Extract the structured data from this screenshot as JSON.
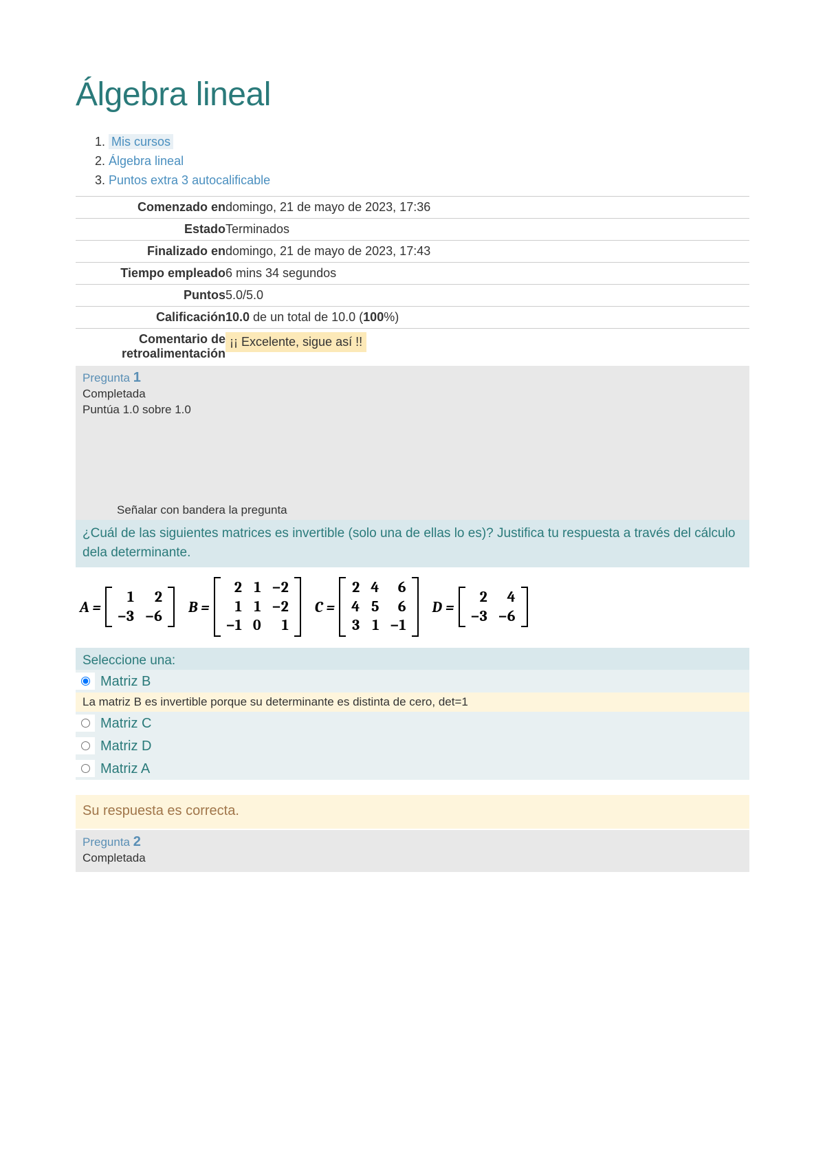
{
  "page": {
    "title": "Álgebra lineal"
  },
  "breadcrumbs": {
    "items": [
      {
        "label": "Mis cursos",
        "highlighted": true
      },
      {
        "label": "Álgebra lineal",
        "highlighted": false
      },
      {
        "label": "Puntos extra 3 autocalificable",
        "highlighted": false
      }
    ]
  },
  "summary": {
    "rows": {
      "started": {
        "label": "Comenzado en",
        "value": "domingo, 21 de mayo de 2023, 17:36"
      },
      "state": {
        "label": "Estado",
        "value": "Terminados"
      },
      "finished": {
        "label": "Finalizado en",
        "value": "domingo, 21 de mayo de 2023, 17:43"
      },
      "time": {
        "label": "Tiempo empleado",
        "value": "6 mins 34 segundos"
      },
      "points": {
        "label": "Puntos",
        "value": "5.0/5.0"
      },
      "grade": {
        "label": "Calificación",
        "value_prefix": "10.0",
        "value_mid": " de un total de 10.0 (",
        "value_bold": "100",
        "value_suffix": "%)"
      },
      "feedback": {
        "label": "Comentario de retroalimentación",
        "value": "¡¡ Excelente, sigue así !!"
      }
    }
  },
  "question1": {
    "label_prefix": "Pregunta ",
    "number": "1",
    "status": "Completada",
    "score": "Puntúa 1.0 sobre 1.0",
    "flag_text": "Señalar con bandera la pregunta",
    "text": "¿Cuál de las siguientes matrices es invertible (solo una de ellas lo es)? Justifica tu respuesta a través del cálculo dela determinante.",
    "matrices": {
      "A": {
        "label": "A =",
        "rows": [
          [
            "1",
            "2"
          ],
          [
            "−3",
            "−6"
          ]
        ]
      },
      "B": {
        "label": "B =",
        "rows": [
          [
            "2",
            "1",
            "−2"
          ],
          [
            "1",
            "1",
            "−2"
          ],
          [
            "−1",
            "0",
            "1"
          ]
        ]
      },
      "C": {
        "label": "C =",
        "rows": [
          [
            "2",
            "4",
            "6"
          ],
          [
            "4",
            "5",
            "6"
          ],
          [
            "3",
            "1",
            "−1"
          ]
        ]
      },
      "D": {
        "label": "D =",
        "rows": [
          [
            "2",
            "4"
          ],
          [
            "−3",
            "−6"
          ]
        ]
      }
    },
    "select_label": "Seleccione una:",
    "options": [
      {
        "label": "Matriz B",
        "selected": true,
        "feedback": "La matriz B es invertible porque su determinante es distinta de cero, det=1"
      },
      {
        "label": "Matriz C",
        "selected": false
      },
      {
        "label": "Matriz D",
        "selected": false
      },
      {
        "label": "Matriz A",
        "selected": false
      }
    ],
    "correct_text": "Su respuesta es correcta."
  },
  "question2": {
    "label_prefix": "Pregunta ",
    "number": "2",
    "status": "Completada"
  },
  "colors": {
    "primary_teal": "#2a7a7a",
    "link_blue": "#4a8fbf",
    "bg_blue_light": "#d9e8ec",
    "bg_blue_lighter": "#e8f0f2",
    "bg_yellow": "#fce9b8",
    "bg_yellow_light": "#fef5dc",
    "bg_gray_light": "#e8e8e8",
    "text_brown": "#a0754a",
    "question_blue": "#5a8fb5",
    "border_gray": "#cccccc"
  }
}
